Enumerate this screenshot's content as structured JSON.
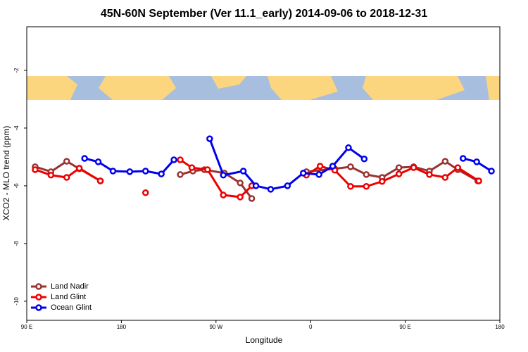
{
  "chart_data": {
    "type": "line",
    "title": "45N-60N September (Ver 11.1_early)   2014-09-06 to 2018-12-31",
    "x_label": "Longitude",
    "y_label": "XCO2 - MLO trend (ppm)",
    "xlim": [
      90,
      540
    ],
    "ylim": [
      -10.66,
      -0.49
    ],
    "xticks": [
      {
        "value": 90,
        "label": "90 E"
      },
      180,
      {
        "value": 270,
        "label": "90 W"
      },
      {
        "value": 360,
        "label": "0"
      },
      {
        "value": 450,
        "label": "90 E"
      },
      {
        "value": 540,
        "label": "180"
      }
    ],
    "yticks": [
      -10,
      -8,
      -6,
      -4,
      -2
    ],
    "legend": "bottom-left",
    "series": [
      {
        "name": "Land Nadir",
        "color": "#993333",
        "x": [
          98,
          113,
          128,
          140,
          160,
          null,
          236,
          248,
          259,
          278,
          293,
          304,
          null,
          356,
          383,
          398,
          413,
          428,
          444,
          458,
          473,
          488,
          500,
          519
        ],
        "values": [
          -5.34,
          -5.51,
          -5.15,
          -5.41,
          -5.83,
          null,
          -5.61,
          -5.49,
          -5.44,
          -5.56,
          -5.9,
          -6.44,
          null,
          -5.51,
          -5.41,
          -5.34,
          -5.61,
          -5.71,
          -5.37,
          -5.34,
          -5.49,
          -5.15,
          -5.44,
          -5.83
        ]
      },
      {
        "name": "Land Glint",
        "color": "#ee0000",
        "x": [
          98,
          113,
          128,
          140,
          160,
          null,
          203,
          null,
          236,
          247,
          262,
          277,
          293,
          304,
          null,
          356,
          369,
          383,
          398,
          413,
          428,
          444,
          458,
          473,
          488,
          500,
          520
        ],
        "values": [
          -5.44,
          -5.63,
          -5.71,
          -5.39,
          -5.83,
          null,
          -6.24,
          null,
          -5.1,
          -5.37,
          -5.44,
          -6.32,
          -6.39,
          -6.0,
          null,
          -5.63,
          -5.32,
          -5.46,
          -6.02,
          -6.02,
          -5.85,
          -5.59,
          -5.37,
          -5.61,
          -5.71,
          -5.37,
          -5.83
        ]
      },
      {
        "name": "Ocean Glint",
        "color": "#0000ee",
        "x": [
          145,
          158,
          172,
          188,
          203,
          218,
          230,
          null,
          264,
          277,
          296,
          308,
          322,
          338,
          353,
          368,
          381,
          396,
          411,
          null,
          505,
          518,
          532
        ],
        "values": [
          -5.05,
          -5.17,
          -5.49,
          -5.51,
          -5.49,
          -5.59,
          -5.1,
          null,
          -4.37,
          -5.63,
          -5.49,
          -6.0,
          -6.12,
          -6.0,
          -5.56,
          -5.61,
          -5.32,
          -4.68,
          -5.07,
          null,
          -5.05,
          -5.17,
          -5.49
        ]
      }
    ]
  }
}
